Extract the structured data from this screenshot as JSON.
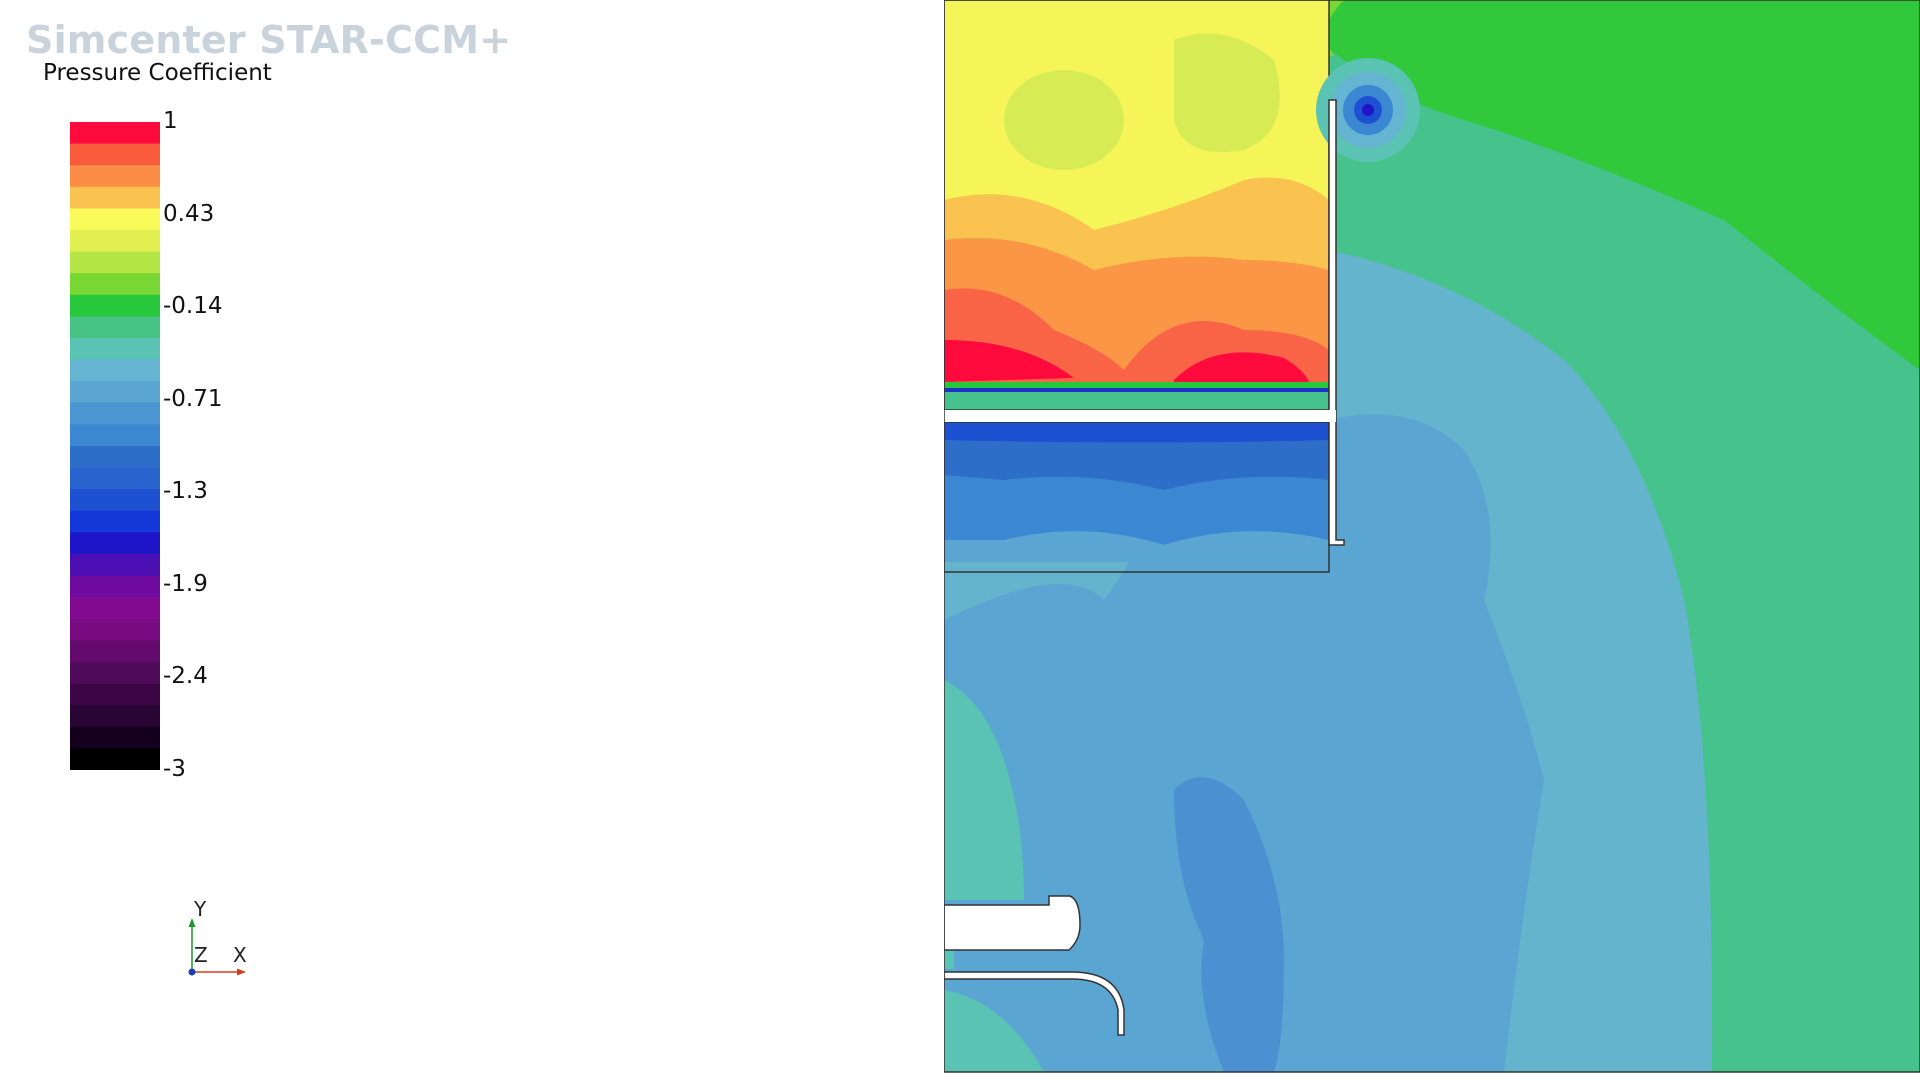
{
  "app": {
    "watermark": "Simcenter STAR-CCM+"
  },
  "legend": {
    "title": "Pressure Coefficient",
    "min": -3,
    "max": 1,
    "tick_labels": [
      "1",
      "0.43",
      "-0.14",
      "-0.71",
      "-1.3",
      "-1.9",
      "-2.4",
      "-3"
    ],
    "band_colors": [
      "#ff0a3c",
      "#fa5a3c",
      "#fa8c46",
      "#fac350",
      "#fafa5a",
      "#e1f050",
      "#b4e646",
      "#78d732",
      "#28c83c",
      "#46c382",
      "#5ac3b4",
      "#64b4d2",
      "#5aa5d2",
      "#4b96d2",
      "#3c87d2",
      "#2d6ec8",
      "#2864cd",
      "#1e50d2",
      "#1437d7",
      "#1e14c8",
      "#4b0fb4",
      "#6e0aa0",
      "#820a91",
      "#780a82",
      "#640a6e",
      "#500a5a",
      "#3c0546",
      "#280532",
      "#14001e",
      "#000000"
    ]
  },
  "axes_triad": {
    "x_label": "X",
    "y_label": "Y",
    "z_label": "Z",
    "x_color": "#d23c1e",
    "y_color": "#1e9632",
    "z_color": "#1e3cb4"
  },
  "field_colors": {
    "bright_green": "#32c83c",
    "teal_green": "#46c38c",
    "light_blue": "#64b4cd",
    "mid_blue": "#5aa5d2",
    "deep_blue": "#4b91d2",
    "yellow": "#f5f55a",
    "yellow_green": "#d7eb55",
    "light_orange": "#fac350",
    "orange": "#fa9646",
    "red_orange": "#fa6446",
    "red": "#ff0a3c",
    "vortex_blue": "#1e32c8"
  }
}
